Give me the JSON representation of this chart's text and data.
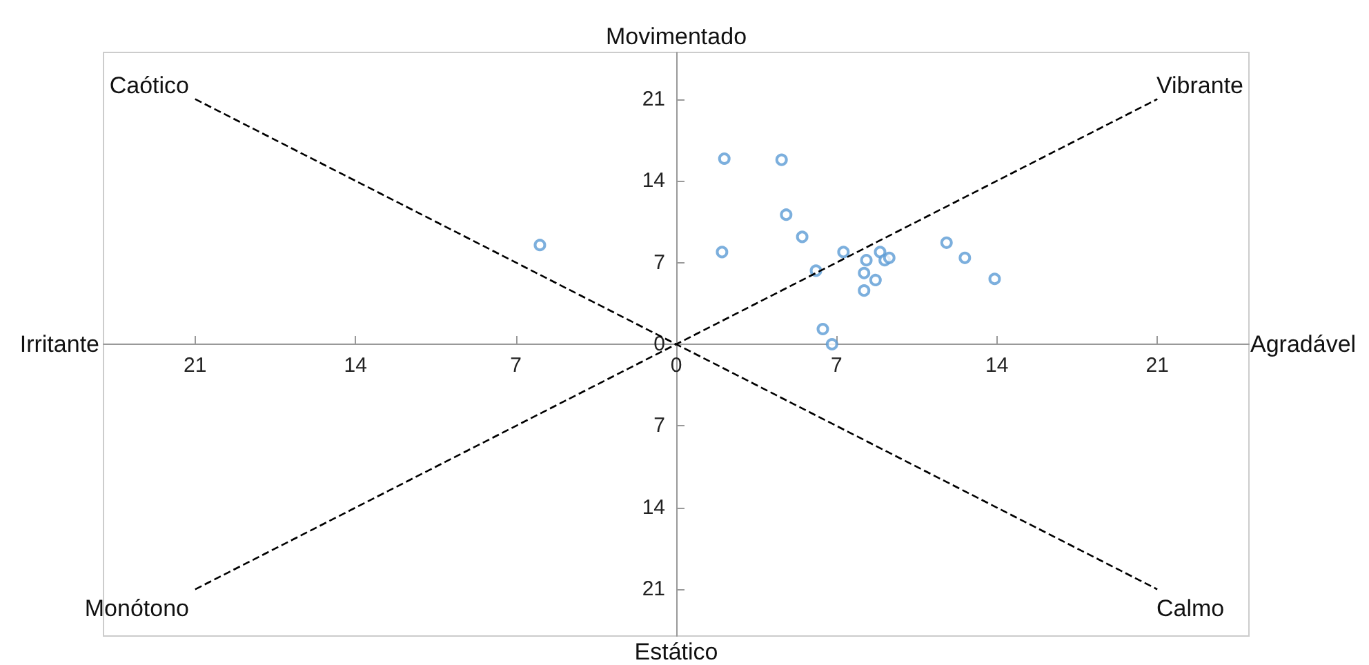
{
  "chart_data": {
    "type": "scatter",
    "marker": "circle",
    "xlim": [
      -25,
      25
    ],
    "ylim": [
      -25,
      25
    ],
    "xticks": [
      {
        "value": -21,
        "label": "21"
      },
      {
        "value": -14,
        "label": "14"
      },
      {
        "value": -7,
        "label": "7"
      },
      0,
      7,
      14,
      21
    ],
    "yticks": [
      {
        "value": -21,
        "label": "21"
      },
      {
        "value": -14,
        "label": "14"
      },
      {
        "value": -7,
        "label": "7"
      },
      0,
      7,
      14,
      21
    ],
    "series": [
      {
        "color": "#5b9bd5",
        "x": [
          -5.95,
          2.1,
          4.6,
          4.8,
          5.5,
          2.0,
          7.3,
          6.1,
          8.2,
          8.3,
          8.9,
          9.1,
          9.3,
          8.7,
          8.2,
          11.8,
          12.6,
          13.9,
          6.4,
          6.8
        ],
        "values": [
          8.5,
          15.9,
          15.8,
          11.1,
          9.2,
          7.9,
          7.9,
          6.3,
          6.1,
          7.2,
          7.9,
          7.2,
          7.4,
          5.5,
          4.6,
          8.7,
          7.4,
          5.6,
          1.3,
          0.0
        ]
      },
      {
        "type": "line",
        "color": "#000000",
        "line_style": "dashed",
        "marker": "none",
        "x": [
          -21,
          21
        ],
        "values": [
          -21,
          21
        ]
      },
      {
        "type": "line",
        "color": "#000000",
        "line_style": "dashed",
        "marker": "none",
        "x": [
          -21,
          21
        ],
        "values": [
          21,
          -21
        ]
      }
    ],
    "annotations": [
      "Movimentado",
      "Estático",
      "Irritante",
      "Agradável",
      "Caótico",
      "Vibrante",
      "Monótono",
      "Calmo"
    ]
  }
}
